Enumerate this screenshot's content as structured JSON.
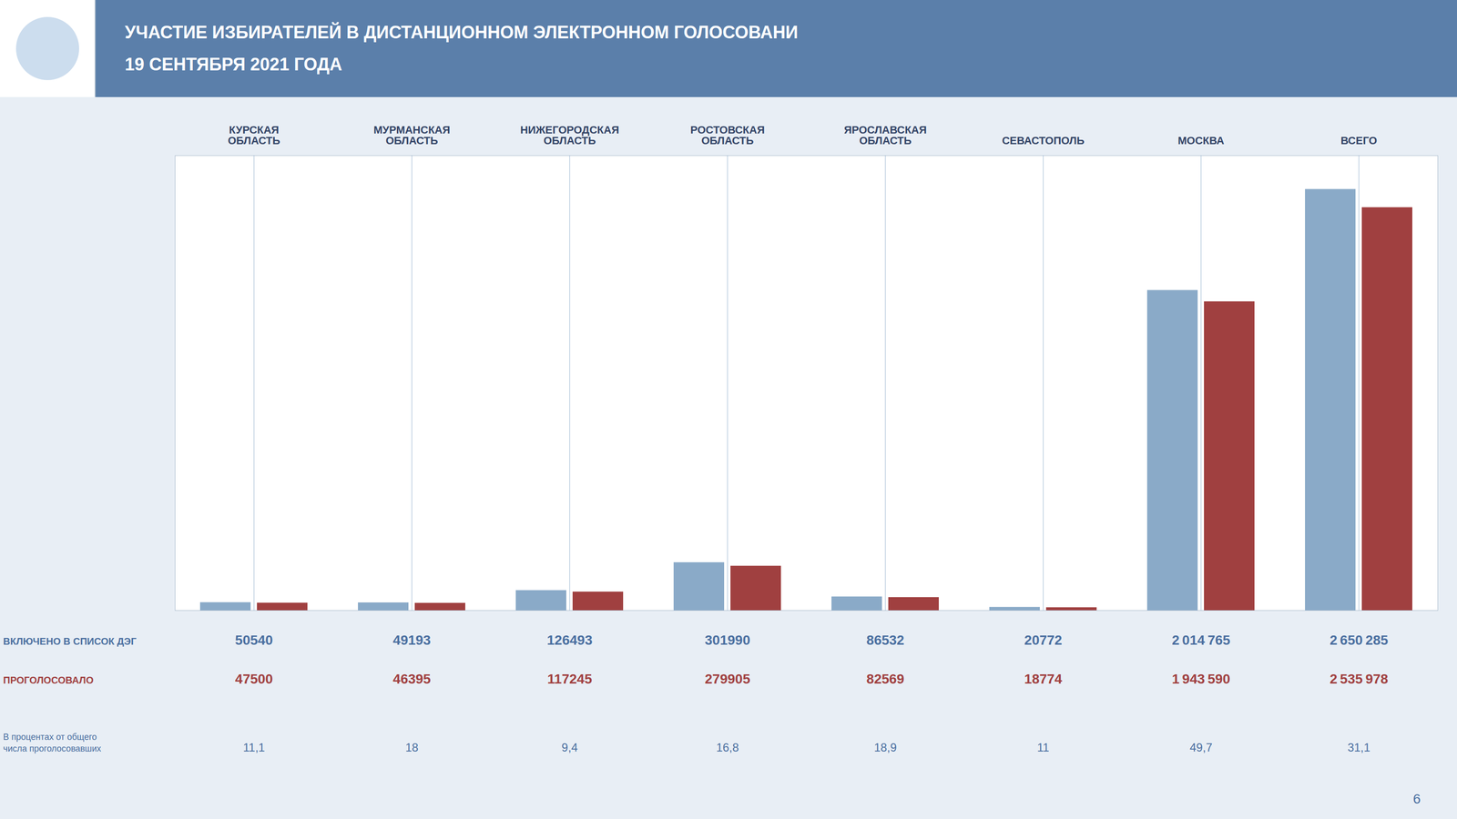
{
  "chart_data": {
    "type": "bar",
    "title": "УЧАСТИЕ ИЗБИРАТЕЛЕЙ В ДИСТАНЦИОННОМ ЭЛЕКТРОННОМ ГОЛОСОВАНИ",
    "subtitle": "19 СЕНТЯБРЯ 2021 ГОДА",
    "categories": [
      "КУРСКАЯ\nОБЛАСТЬ",
      "МУРМАНСКАЯ\nОБЛАСТЬ",
      "НИЖЕГОРОДСКАЯ\nОБЛАСТЬ",
      "РОСТОВСКАЯ\nОБЛАСТЬ",
      "ЯРОСЛАВСКАЯ\nОБЛАСТЬ",
      "СЕВАСТОПОЛЬ",
      "МОСКВА",
      "ВСЕГО"
    ],
    "series": [
      {
        "name": "ВКЛЮЧЕНО В СПИСОК ДЭГ",
        "color": "#8aaac8",
        "values": [
          50540,
          49193,
          126493,
          301990,
          86532,
          20772,
          2014765,
          2650285
        ],
        "value_labels": [
          "50540",
          "49193",
          "126493",
          "301990",
          "86532",
          "20772",
          "2 014 765",
          "2 650 285"
        ]
      },
      {
        "name": "ПРОГОЛОСОВАЛО",
        "color": "#a04040",
        "values": [
          47500,
          46395,
          117245,
          279905,
          82569,
          18774,
          1943590,
          2535978
        ],
        "value_labels": [
          "47500",
          "46395",
          "117245",
          "279905",
          "82569",
          "18774",
          "1 943 590",
          "2 535 978"
        ]
      }
    ],
    "percent": {
      "label": "В процентах от общего\nчисла проголосовавших",
      "values": [
        11.1,
        18,
        9.4,
        16.8,
        18.9,
        11,
        49.7,
        31.1
      ],
      "value_labels": [
        "11,1",
        "18",
        "9,4",
        "16,8",
        "18,9",
        "11",
        "49,7",
        "31,1"
      ]
    },
    "ylim": [
      0,
      2862307.8
    ],
    "grid": true,
    "data_labels": true,
    "tick_labels": "x",
    "annotations": [
      "6"
    ]
  }
}
